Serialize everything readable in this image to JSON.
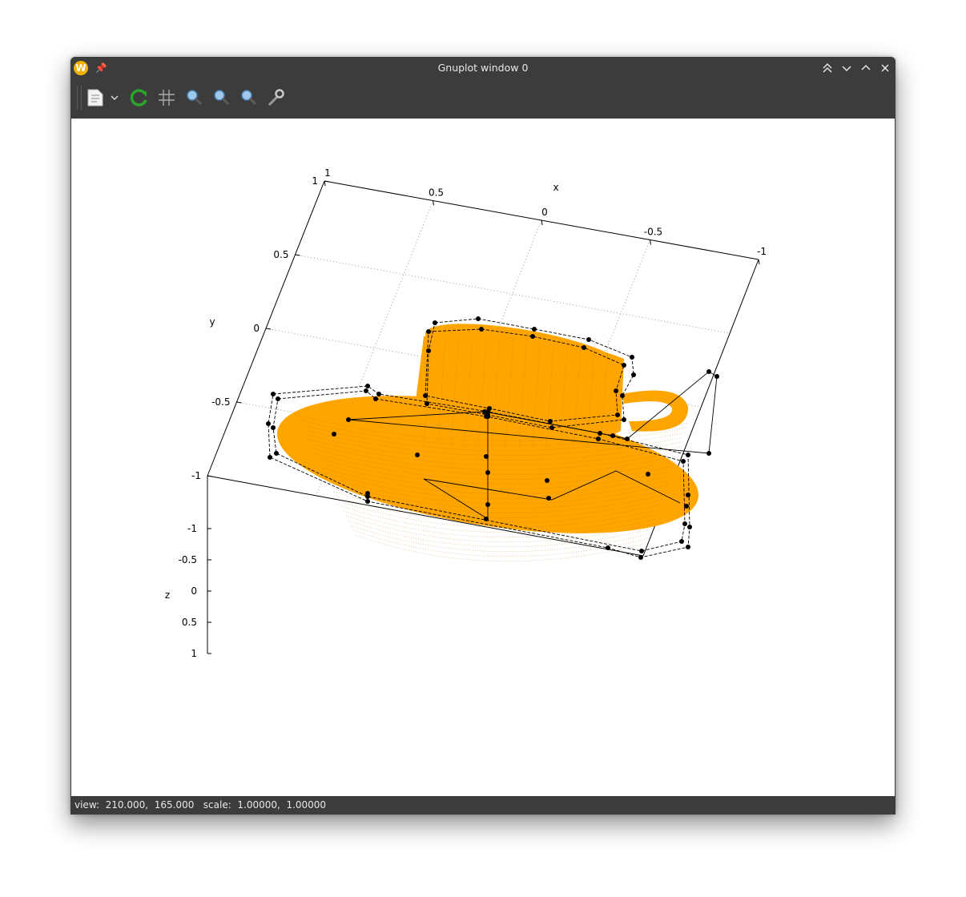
{
  "window": {
    "title": "Gnuplot window 0",
    "status": "view:  210.000,  165.000   scale:  1.00000,  1.00000"
  },
  "toolbar": {
    "buttons": [
      "copy-to-clipboard",
      "export-menu",
      "replot",
      "grid",
      "zoom-previous",
      "zoom-next",
      "unzoom",
      "options"
    ]
  },
  "chart_data": {
    "type": "surface3d",
    "description_series": [
      {
        "name": "",
        "color": "#ffa500",
        "style": "dense surface mesh (teapot-like cup & saucer)"
      },
      {
        "name": "",
        "color": "#000000",
        "style": "control-point polygon with point markers"
      }
    ],
    "axes": {
      "x": {
        "label": "x",
        "ticks": [
          "1",
          "0.5",
          "0",
          "-0.5",
          "-1"
        ],
        "range": [
          -1,
          1
        ]
      },
      "y": {
        "label": "y",
        "ticks": [
          "1",
          "0.5",
          "0",
          "-0.5",
          "-1"
        ],
        "range": [
          -1,
          1
        ]
      },
      "z": {
        "label": "z",
        "ticks": [
          "-1",
          "-0.5",
          "0",
          "0.5",
          "1"
        ],
        "range": [
          -1,
          1
        ]
      }
    },
    "grid": true,
    "view": {
      "rot_x": 210,
      "rot_z": 165,
      "scale": 1,
      "scale_z": 1
    }
  }
}
